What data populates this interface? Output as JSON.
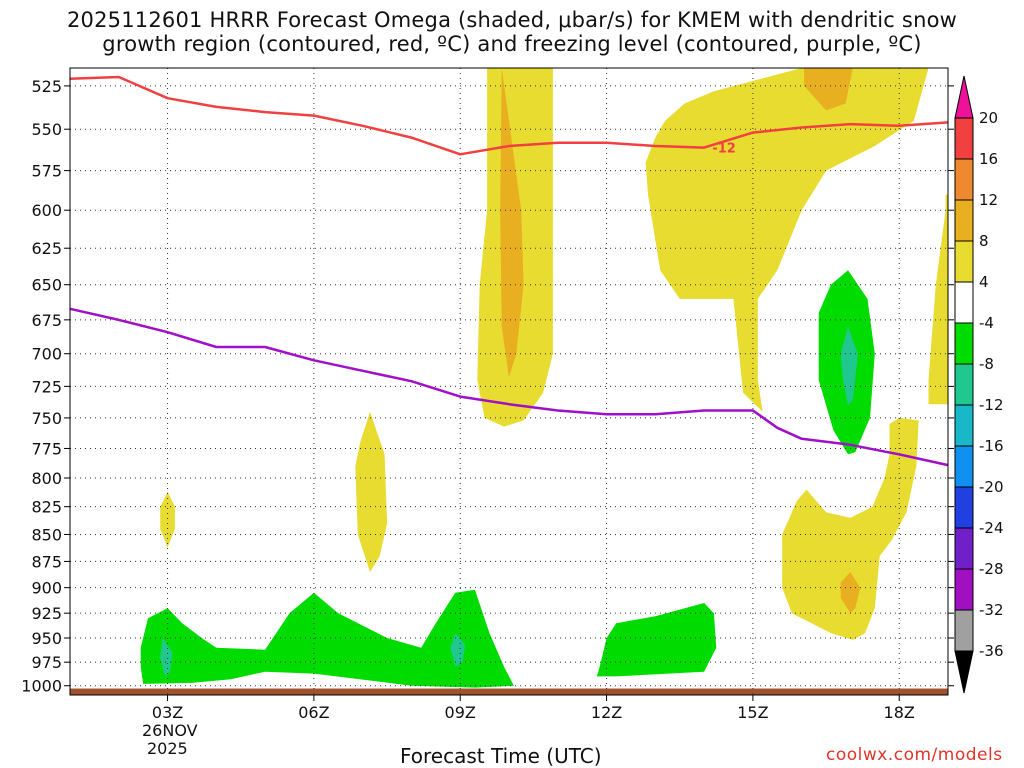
{
  "chart_data": {
    "type": "contour",
    "title": "2025112601 HRRR Forecast Omega (shaded, μbar/s) for KMEM with dendritic snow",
    "title_line2": "growth region (contoured, red, ºC) and freezing level (contoured, purple, ºC)",
    "xlabel": "Forecast Time (UTC)",
    "date_labels": [
      "26NOV",
      "2025"
    ],
    "x_ticks": [
      "03Z",
      "06Z",
      "09Z",
      "12Z",
      "15Z",
      "18Z"
    ],
    "x_tick_hours": [
      3,
      6,
      9,
      12,
      15,
      18
    ],
    "xlim": [
      1,
      19
    ],
    "y_ticks": [
      "525",
      "550",
      "575",
      "600",
      "625",
      "650",
      "675",
      "700",
      "725",
      "750",
      "775",
      "800",
      "825",
      "850",
      "875",
      "900",
      "925",
      "950",
      "975",
      "1000"
    ],
    "y_tick_values": [
      525,
      550,
      575,
      600,
      625,
      650,
      675,
      700,
      725,
      750,
      775,
      800,
      825,
      850,
      875,
      900,
      925,
      950,
      975,
      1000
    ],
    "ylim": [
      515,
      1010
    ],
    "y_scale": "log-pressure",
    "colorbar": {
      "labels": [
        "20",
        "16",
        "12",
        "8",
        "4",
        "-4",
        "-8",
        "-12",
        "-16",
        "-20",
        "-24",
        "-28",
        "-32",
        "-36"
      ],
      "colors": [
        "#ee1199",
        "#f04040",
        "#f08830",
        "#e8b020",
        "#e8dc30",
        "#ffffff",
        "#00dc00",
        "#20c890",
        "#18b8c8",
        "#1090f0",
        "#2040e0",
        "#7020c8",
        "#a010c0",
        "#a0a0a0",
        "#000000"
      ]
    },
    "series": [
      {
        "name": "dendritic snow growth -12C (red)",
        "color": "#f04040",
        "label": "-12",
        "label_at": [
          13.8,
          561
        ],
        "points": [
          [
            1,
            521
          ],
          [
            2,
            520
          ],
          [
            3,
            532
          ],
          [
            4,
            537
          ],
          [
            5,
            540
          ],
          [
            6,
            542
          ],
          [
            7,
            548
          ],
          [
            8,
            555
          ],
          [
            9,
            565
          ],
          [
            10,
            560
          ],
          [
            11,
            558
          ],
          [
            12,
            558
          ],
          [
            13,
            560
          ],
          [
            14,
            561
          ],
          [
            15,
            552
          ],
          [
            16,
            549
          ],
          [
            17,
            547
          ],
          [
            18,
            548
          ],
          [
            19,
            546
          ]
        ]
      },
      {
        "name": "freezing level 0C (purple)",
        "color": "#a010c8",
        "points": [
          [
            1,
            667
          ],
          [
            2,
            675
          ],
          [
            3,
            684
          ],
          [
            4,
            695
          ],
          [
            5,
            695
          ],
          [
            6,
            705
          ],
          [
            7,
            713
          ],
          [
            8,
            721
          ],
          [
            9,
            733
          ],
          [
            10,
            739
          ],
          [
            11,
            744
          ],
          [
            12,
            747
          ],
          [
            13,
            747
          ],
          [
            14,
            744
          ],
          [
            15,
            744
          ],
          [
            15.5,
            758
          ],
          [
            16,
            767
          ],
          [
            17,
            772
          ],
          [
            18,
            780
          ],
          [
            19,
            789
          ]
        ]
      }
    ],
    "shaded_regions": [
      {
        "level": "4",
        "color": "#e8dc30",
        "poly": [
          [
            9.55,
            515
          ],
          [
            10.9,
            515
          ],
          [
            10.9,
            600
          ],
          [
            10.9,
            700
          ],
          [
            10.7,
            730
          ],
          [
            10.3,
            752
          ],
          [
            9.9,
            757
          ],
          [
            9.5,
            750
          ],
          [
            9.35,
            720
          ],
          [
            9.4,
            650
          ],
          [
            9.55,
            600
          ]
        ]
      },
      {
        "level": "8",
        "color": "#e8b020",
        "poly": [
          [
            9.85,
            515
          ],
          [
            10.0,
            545
          ],
          [
            10.25,
            600
          ],
          [
            10.3,
            650
          ],
          [
            10.15,
            700
          ],
          [
            10.0,
            718
          ],
          [
            9.85,
            680
          ],
          [
            9.82,
            600
          ]
        ]
      },
      {
        "level": "4",
        "color": "#e8dc30",
        "poly": [
          [
            13.2,
            545
          ],
          [
            13.6,
            535
          ],
          [
            14.2,
            528
          ],
          [
            16.0,
            515
          ],
          [
            18.6,
            515
          ],
          [
            18.3,
            545
          ],
          [
            17.5,
            560
          ],
          [
            16.5,
            575
          ],
          [
            16.0,
            600
          ],
          [
            15.5,
            640
          ],
          [
            15.1,
            660
          ],
          [
            15.1,
            720
          ],
          [
            15.2,
            745
          ],
          [
            14.8,
            730
          ],
          [
            14.6,
            660
          ],
          [
            13.5,
            660
          ],
          [
            13.1,
            640
          ],
          [
            12.85,
            590
          ],
          [
            12.8,
            570
          ],
          [
            13.0,
            555
          ]
        ]
      },
      {
        "level": "8",
        "color": "#e8b020",
        "poly": [
          [
            16.05,
            515
          ],
          [
            17.05,
            515
          ],
          [
            16.9,
            535
          ],
          [
            16.5,
            539
          ],
          [
            16.05,
            525
          ]
        ]
      },
      {
        "level": "4",
        "color": "#e8dc30",
        "poly": [
          [
            18.95,
            590
          ],
          [
            19.0,
            590
          ],
          [
            19.0,
            739
          ],
          [
            18.6,
            739
          ],
          [
            18.6,
            720
          ],
          [
            18.75,
            650
          ],
          [
            18.95,
            600
          ]
        ]
      },
      {
        "level": "-4",
        "color": "#00dc00",
        "poly": [
          [
            16.95,
            640
          ],
          [
            17.35,
            660
          ],
          [
            17.5,
            700
          ],
          [
            17.4,
            750
          ],
          [
            17.1,
            778
          ],
          [
            16.95,
            780
          ],
          [
            16.65,
            760
          ],
          [
            16.35,
            720
          ],
          [
            16.35,
            670
          ],
          [
            16.6,
            650
          ]
        ]
      },
      {
        "level": "-8",
        "color": "#20c890",
        "poly": [
          [
            16.95,
            680
          ],
          [
            17.15,
            700
          ],
          [
            17.05,
            735
          ],
          [
            16.95,
            740
          ],
          [
            16.85,
            720
          ],
          [
            16.8,
            700
          ]
        ]
      },
      {
        "level": "4",
        "color": "#e8dc30",
        "poly": [
          [
            7.15,
            745
          ],
          [
            7.45,
            780
          ],
          [
            7.5,
            840
          ],
          [
            7.35,
            870
          ],
          [
            7.15,
            885
          ],
          [
            6.9,
            850
          ],
          [
            6.85,
            790
          ],
          [
            6.95,
            770
          ]
        ]
      },
      {
        "level": "4",
        "color": "#e8dc30",
        "poly": [
          [
            3.0,
            812
          ],
          [
            3.15,
            825
          ],
          [
            3.15,
            845
          ],
          [
            3.0,
            862
          ],
          [
            2.85,
            845
          ],
          [
            2.85,
            825
          ]
        ]
      },
      {
        "level": "4",
        "color": "#e8dc30",
        "poly": [
          [
            17.8,
            755
          ],
          [
            18.0,
            750
          ],
          [
            18.4,
            752
          ],
          [
            18.35,
            790
          ],
          [
            18.15,
            830
          ],
          [
            17.85,
            855
          ],
          [
            17.6,
            870
          ],
          [
            17.5,
            920
          ],
          [
            17.3,
            945
          ],
          [
            17.05,
            952
          ],
          [
            16.6,
            945
          ],
          [
            15.8,
            925
          ],
          [
            15.6,
            900
          ],
          [
            15.6,
            850
          ],
          [
            15.9,
            820
          ],
          [
            16.1,
            810
          ],
          [
            16.5,
            830
          ],
          [
            17.0,
            835
          ],
          [
            17.45,
            825
          ],
          [
            17.7,
            800
          ],
          [
            17.8,
            780
          ]
        ]
      },
      {
        "level": "8",
        "color": "#e8b020",
        "poly": [
          [
            17.0,
            885
          ],
          [
            17.2,
            900
          ],
          [
            17.1,
            920
          ],
          [
            17.0,
            925
          ],
          [
            16.8,
            910
          ],
          [
            16.8,
            895
          ]
        ]
      },
      {
        "level": "-4",
        "color": "#00dc00",
        "poly": [
          [
            2.45,
            960
          ],
          [
            2.6,
            930
          ],
          [
            3.0,
            920
          ],
          [
            3.3,
            935
          ],
          [
            3.7,
            950
          ],
          [
            4.0,
            960
          ],
          [
            5.0,
            962
          ],
          [
            5.5,
            925
          ],
          [
            6.0,
            905
          ],
          [
            6.5,
            925
          ],
          [
            7.5,
            950
          ],
          [
            8.2,
            960
          ],
          [
            8.5,
            935
          ],
          [
            8.9,
            905
          ],
          [
            9.3,
            902
          ],
          [
            9.6,
            945
          ],
          [
            9.9,
            980
          ],
          [
            10.1,
            1000
          ],
          [
            9.3,
            1002
          ],
          [
            8.0,
            1000
          ],
          [
            6.0,
            987
          ],
          [
            5.0,
            985
          ],
          [
            4.3,
            993
          ],
          [
            3.5,
            997
          ],
          [
            2.5,
            998
          ],
          [
            2.45,
            980
          ]
        ]
      },
      {
        "level": "-8",
        "color": "#20c890",
        "poly": [
          [
            2.9,
            950
          ],
          [
            3.1,
            965
          ],
          [
            3.05,
            985
          ],
          [
            2.95,
            990
          ],
          [
            2.85,
            970
          ]
        ]
      },
      {
        "level": "-8",
        "color": "#20c890",
        "poly": [
          [
            8.9,
            945
          ],
          [
            9.1,
            957
          ],
          [
            9.05,
            975
          ],
          [
            8.9,
            980
          ],
          [
            8.8,
            960
          ]
        ]
      },
      {
        "level": "-4",
        "color": "#00dc00",
        "poly": [
          [
            11.85,
            982
          ],
          [
            12.0,
            950
          ],
          [
            12.2,
            935
          ],
          [
            13.0,
            928
          ],
          [
            14.0,
            915
          ],
          [
            14.2,
            925
          ],
          [
            14.25,
            960
          ],
          [
            14.0,
            985
          ],
          [
            12.2,
            990
          ],
          [
            11.8,
            990
          ]
        ]
      }
    ]
  },
  "credit": "coolwx.com/models"
}
